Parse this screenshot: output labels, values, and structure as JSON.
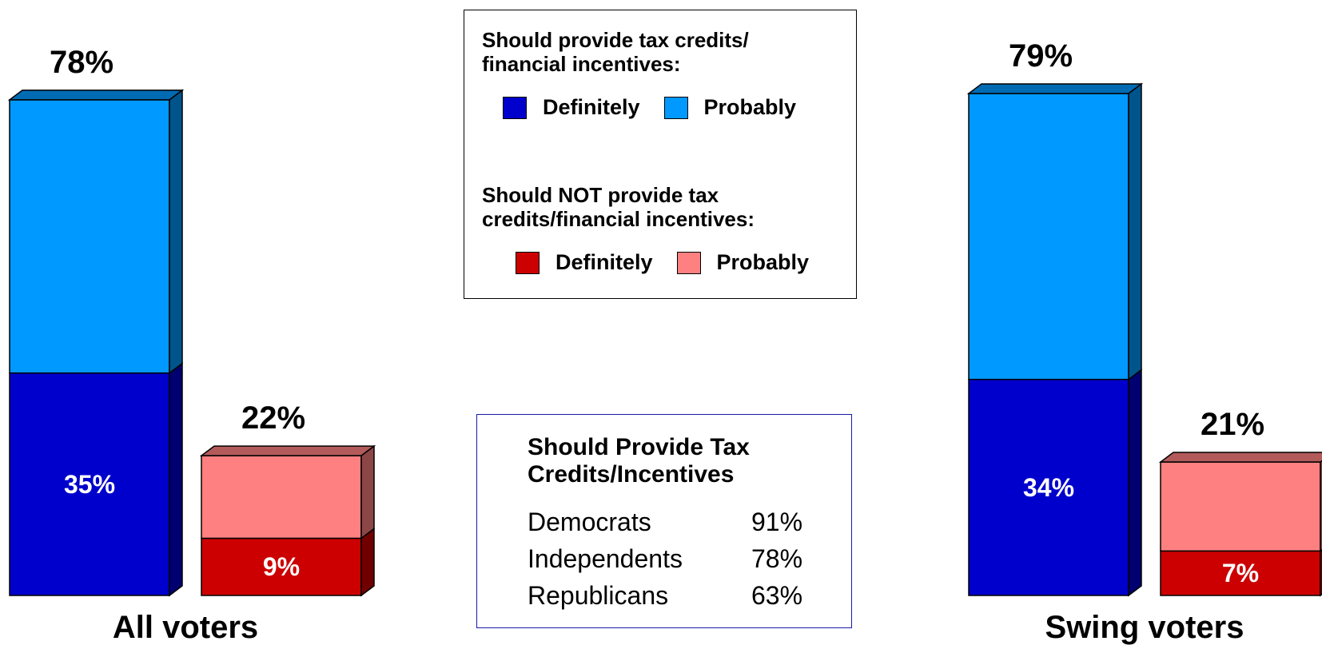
{
  "chart_data": {
    "type": "bar",
    "stacked": true,
    "groups": [
      {
        "label": "All voters",
        "bars": [
          {
            "total_label": "78%",
            "total": 78,
            "segments": [
              {
                "legend": "Definitely",
                "value": 35,
                "label": "35%"
              },
              {
                "legend": "Probably",
                "value": 43,
                "label": ""
              }
            ]
          },
          {
            "total_label": "22%",
            "total": 22,
            "segments": [
              {
                "legend": "Definitely",
                "value": 9,
                "label": "9%"
              },
              {
                "legend": "Probably",
                "value": 13,
                "label": ""
              }
            ]
          }
        ]
      },
      {
        "label": "Swing voters",
        "bars": [
          {
            "total_label": "79%",
            "total": 79,
            "segments": [
              {
                "legend": "Definitely",
                "value": 34,
                "label": "34%"
              },
              {
                "legend": "Probably",
                "value": 45,
                "label": ""
              }
            ]
          },
          {
            "total_label": "21%",
            "total": 21,
            "segments": [
              {
                "legend": "Definitely",
                "value": 7,
                "label": "7%"
              },
              {
                "legend": "Probably",
                "value": 14,
                "label": ""
              }
            ]
          }
        ]
      }
    ],
    "ylim": [
      0,
      100
    ],
    "grid": false,
    "legend": {
      "placement": "top-center",
      "groups": [
        {
          "heading": [
            "Should provide tax credits/",
            "financial incentives:"
          ],
          "items": [
            {
              "label": "Definitely",
              "color": "#0000cc"
            },
            {
              "label": "Probably",
              "color": "#0099ff"
            }
          ]
        },
        {
          "heading": [
            "Should NOT provide tax",
            "credits/financial incentives:"
          ],
          "items": [
            {
              "label": "Definitely",
              "color": "#cc0000"
            },
            {
              "label": "Probably",
              "color": "#ff8080"
            }
          ]
        }
      ]
    }
  },
  "colors": {
    "provide_definitely": "#0000cc",
    "provide_probably": "#0099ff",
    "not_definitely": "#cc0000",
    "not_probably": "#ff8080"
  },
  "party_table": {
    "title": [
      "Should Provide Tax",
      "Credits/Incentives"
    ],
    "rows": [
      {
        "party": "Democrats",
        "value": "91%"
      },
      {
        "party": "Independents",
        "value": "78%"
      },
      {
        "party": "Republicans",
        "value": "63%"
      }
    ]
  }
}
